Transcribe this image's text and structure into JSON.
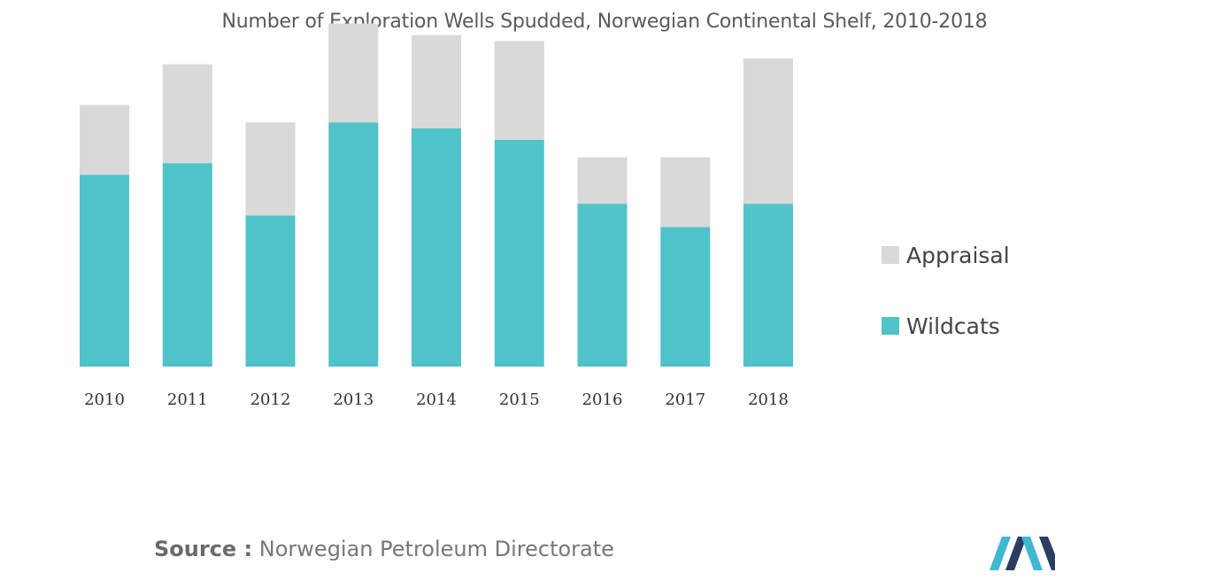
{
  "chart_data": {
    "type": "bar",
    "stacked": true,
    "title": "Number of Exploration Wells Spudded, Norwegian Continental Shelf, 2010-2018",
    "categories": [
      "2010",
      "2011",
      "2012",
      "2013",
      "2014",
      "2015",
      "2016",
      "2017",
      "2018"
    ],
    "series": [
      {
        "name": "Wildcats",
        "color": "#4fc3c9",
        "values": [
          33,
          35,
          26,
          42,
          41,
          39,
          28,
          24,
          28
        ]
      },
      {
        "name": "Appraisal",
        "color": "#d9d9d9",
        "values": [
          12,
          17,
          16,
          17,
          16,
          17,
          8,
          12,
          25
        ]
      }
    ],
    "ylim": [
      0,
      60
    ],
    "grid": false,
    "legend_position": "right"
  },
  "legend": {
    "items": [
      {
        "label": "Appraisal",
        "color": "#d9d9d9"
      },
      {
        "label": "Wildcats",
        "color": "#4fc3c9"
      }
    ]
  },
  "source": {
    "prefix": "Source :",
    "text": "Norwegian Petroleum Directorate"
  },
  "logo": {
    "icon": "mordor-intelligence-logo-icon",
    "colors": [
      "#2a3e63",
      "#3fb8d1"
    ]
  }
}
